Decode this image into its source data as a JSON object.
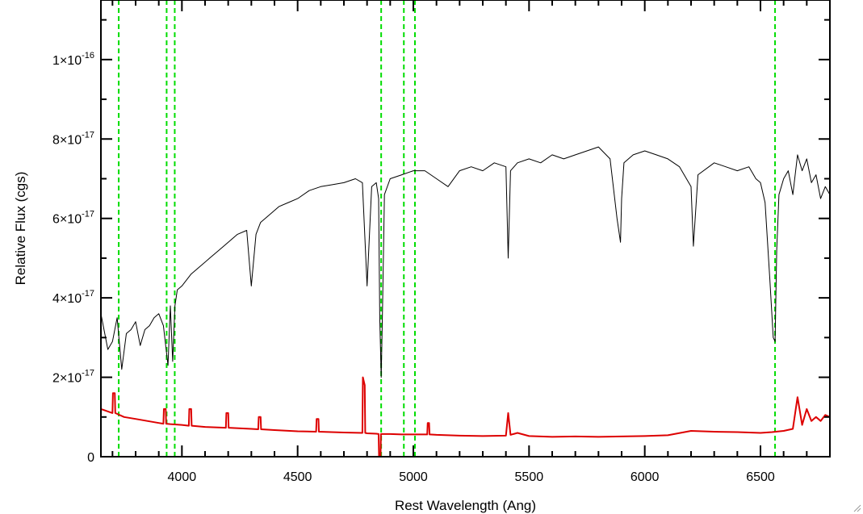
{
  "chart_data": {
    "type": "line",
    "title": "",
    "xlabel": "Rest Wavelength (Ang)",
    "ylabel": "Relative Flux (cgs)",
    "xlim": [
      3650,
      6800
    ],
    "ylim": [
      0,
      1.15e-16
    ],
    "x_ticks": [
      {
        "value": 4000,
        "label": "4000"
      },
      {
        "value": 4500,
        "label": "4500"
      },
      {
        "value": 5000,
        "label": "5000"
      },
      {
        "value": 5500,
        "label": "5500"
      },
      {
        "value": 6000,
        "label": "6000"
      },
      {
        "value": 6500,
        "label": "6500"
      }
    ],
    "y_ticks": [
      {
        "value": 0,
        "label": "0",
        "exponent": ""
      },
      {
        "value": 2e-17,
        "label": "2×10",
        "exponent": "-17"
      },
      {
        "value": 4e-17,
        "label": "4×10",
        "exponent": "-17"
      },
      {
        "value": 6e-17,
        "label": "6×10",
        "exponent": "-17"
      },
      {
        "value": 8e-17,
        "label": "8×10",
        "exponent": "-17"
      },
      {
        "value": 1e-16,
        "label": "1×10",
        "exponent": "-16"
      }
    ],
    "grid": false,
    "vertical_lines": [
      {
        "x": 3727,
        "color": "#00dd00",
        "style": "dashed"
      },
      {
        "x": 3934,
        "color": "#00dd00",
        "style": "dashed"
      },
      {
        "x": 3969,
        "color": "#00dd00",
        "style": "dashed"
      },
      {
        "x": 4861,
        "color": "#00dd00",
        "style": "dashed"
      },
      {
        "x": 4959,
        "color": "#00dd00",
        "style": "dashed"
      },
      {
        "x": 5007,
        "color": "#00dd00",
        "style": "dashed"
      },
      {
        "x": 6563,
        "color": "#00dd00",
        "style": "dashed"
      }
    ],
    "series": [
      {
        "color": "#000000",
        "x": [
          3650,
          3680,
          3700,
          3720,
          3740,
          3760,
          3780,
          3800,
          3820,
          3840,
          3860,
          3880,
          3900,
          3920,
          3940,
          3950,
          3960,
          3970,
          3980,
          4000,
          4040,
          4080,
          4120,
          4160,
          4200,
          4240,
          4280,
          4300,
          4320,
          4340,
          4380,
          4420,
          4460,
          4500,
          4550,
          4600,
          4650,
          4700,
          4750,
          4780,
          4800,
          4820,
          4840,
          4850,
          4855,
          4861,
          4867,
          4875,
          4900,
          4950,
          5000,
          5050,
          5100,
          5150,
          5200,
          5250,
          5300,
          5350,
          5400,
          5410,
          5420,
          5450,
          5500,
          5550,
          5600,
          5650,
          5700,
          5750,
          5800,
          5850,
          5880,
          5895,
          5900,
          5910,
          5950,
          6000,
          6050,
          6100,
          6150,
          6200,
          6210,
          6230,
          6300,
          6350,
          6400,
          6450,
          6480,
          6500,
          6520,
          6540,
          6555,
          6563,
          6570,
          6580,
          6600,
          6620,
          6640,
          6660,
          6680,
          6700,
          6720,
          6740,
          6760,
          6780,
          6800
        ],
        "y": [
          3.6e-17,
          2.7e-17,
          2.9e-17,
          3.5e-17,
          2.2e-17,
          3.1e-17,
          3.2e-17,
          3.4e-17,
          2.8e-17,
          3.2e-17,
          3.3e-17,
          3.5e-17,
          3.6e-17,
          3.3e-17,
          2.3e-17,
          3.8e-17,
          2.4e-17,
          3.8e-17,
          4.2e-17,
          4.3e-17,
          4.6e-17,
          4.8e-17,
          5e-17,
          5.2e-17,
          5.4e-17,
          5.6e-17,
          5.7e-17,
          4.3e-17,
          5.6e-17,
          5.9e-17,
          6.1e-17,
          6.3e-17,
          6.4e-17,
          6.5e-17,
          6.7e-17,
          6.8e-17,
          6.85e-17,
          6.9e-17,
          7e-17,
          6.9e-17,
          4.3e-17,
          6.8e-17,
          6.9e-17,
          6.5e-17,
          3.5e-17,
          2e-17,
          3.8e-17,
          6.6e-17,
          7e-17,
          7.1e-17,
          7.2e-17,
          7.2e-17,
          7e-17,
          6.8e-17,
          7.2e-17,
          7.3e-17,
          7.2e-17,
          7.4e-17,
          7.3e-17,
          5e-17,
          7.2e-17,
          7.4e-17,
          7.5e-17,
          7.4e-17,
          7.6e-17,
          7.5e-17,
          7.6e-17,
          7.7e-17,
          7.8e-17,
          7.5e-17,
          6e-17,
          5.4e-17,
          6.5e-17,
          7.4e-17,
          7.6e-17,
          7.7e-17,
          7.6e-17,
          7.5e-17,
          7.3e-17,
          6.8e-17,
          5.3e-17,
          7.1e-17,
          7.4e-17,
          7.3e-17,
          7.2e-17,
          7.3e-17,
          7e-17,
          6.9e-17,
          6.4e-17,
          4.5e-17,
          3e-17,
          2.9e-17,
          5.2e-17,
          6.6e-17,
          7e-17,
          7.2e-17,
          6.6e-17,
          7.6e-17,
          7.2e-17,
          7.5e-17,
          6.9e-17,
          7.1e-17,
          6.5e-17,
          6.8e-17,
          6.6e-17
        ]
      },
      {
        "color": "#dd0000",
        "x": [
          3650,
          3700,
          3702,
          3710,
          3712,
          3750,
          3800,
          3850,
          3900,
          3920,
          3922,
          3930,
          3932,
          3950,
          4000,
          4030,
          4032,
          4040,
          4042,
          4100,
          4190,
          4192,
          4200,
          4202,
          4300,
          4330,
          4332,
          4340,
          4342,
          4400,
          4500,
          4580,
          4582,
          4590,
          4592,
          4700,
          4780,
          4782,
          4790,
          4792,
          4800,
          4840,
          4850,
          4852,
          4858,
          4860,
          4900,
          4950,
          5000,
          5050,
          5060,
          5062,
          5068,
          5070,
          5100,
          5200,
          5300,
          5400,
          5410,
          5420,
          5450,
          5500,
          5600,
          5700,
          5800,
          6000,
          6100,
          6200,
          6300,
          6400,
          6500,
          6550,
          6600,
          6640,
          6660,
          6680,
          6700,
          6720,
          6740,
          6760,
          6780,
          6800
        ],
        "y": [
          1.2e-17,
          1.1e-17,
          1.6e-17,
          1.6e-17,
          1.1e-17,
          1e-17,
          9.5e-18,
          9e-18,
          8.5e-18,
          8.3e-18,
          1.2e-17,
          1.2e-17,
          8.3e-18,
          8.2e-18,
          8e-18,
          7.8e-18,
          1.2e-17,
          1.2e-17,
          7.8e-18,
          7.5e-18,
          7.3e-18,
          1.1e-17,
          1.1e-17,
          7.3e-18,
          7e-18,
          6.9e-18,
          1e-17,
          1e-17,
          6.9e-18,
          6.7e-18,
          6.4e-18,
          6.3e-18,
          9.5e-18,
          9.5e-18,
          6.3e-18,
          6.1e-18,
          6e-18,
          2e-17,
          1.8e-17,
          6e-18,
          5.9e-18,
          5.8e-18,
          5.7e-18,
          -1e-18,
          -1e-18,
          5.7e-18,
          5.7e-18,
          5.6e-18,
          5.6e-18,
          5.6e-18,
          5.6e-18,
          8.5e-18,
          8.5e-18,
          5.6e-18,
          5.5e-18,
          5.3e-18,
          5.2e-18,
          5.3e-18,
          1.1e-17,
          5.5e-18,
          6e-18,
          5.2e-18,
          5e-18,
          5.1e-18,
          5e-18,
          5.2e-18,
          5.4e-18,
          6.5e-18,
          6.3e-18,
          6.2e-18,
          6e-18,
          6.2e-18,
          6.5e-18,
          7e-18,
          1.5e-17,
          8e-18,
          1.2e-17,
          9e-18,
          1e-17,
          9e-18,
          1.05e-17,
          1e-17
        ]
      }
    ]
  }
}
